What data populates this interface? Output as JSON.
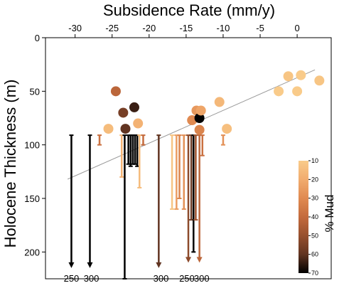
{
  "chart_data": {
    "type": "scatter",
    "title": "",
    "xlabel": "Subsidence Rate (mm/y)",
    "ylabel": "Holocene Thickness (m)",
    "x_axis_position": "top",
    "y_axis_inverted": true,
    "xlim": [
      -34,
      4.6
    ],
    "ylim": [
      0,
      225
    ],
    "x_ticks": [
      -30,
      -25,
      -20,
      -15,
      -10,
      -5,
      0
    ],
    "y_ticks": [
      0,
      50,
      100,
      150,
      200
    ],
    "colorbar": {
      "label": "% Mud",
      "range": [
        10,
        70
      ],
      "ticks": [
        10,
        20,
        30,
        40,
        50,
        60,
        70
      ],
      "position": "right",
      "colors": [
        "#f9cb8a",
        "#f1ac6e",
        "#e08a51",
        "#c46b3d",
        "#97502e",
        "#613421",
        "#000000"
      ]
    },
    "trend_line": {
      "x": [
        -31,
        2.4
      ],
      "y": [
        132,
        30
      ],
      "color": "#999999"
    },
    "points": [
      {
        "x": -25.5,
        "y": 85,
        "mud": 15
      },
      {
        "x": -24.5,
        "y": 50,
        "mud": 42
      },
      {
        "x": -23.5,
        "y": 70,
        "mud": 56
      },
      {
        "x": -23.2,
        "y": 85,
        "mud": 60
      },
      {
        "x": -22,
        "y": 65,
        "mud": 64
      },
      {
        "x": -21.5,
        "y": 80,
        "mud": 18
      },
      {
        "x": -14.2,
        "y": 77,
        "mud": 30
      },
      {
        "x": -13.6,
        "y": 68,
        "mud": 26
      },
      {
        "x": -13.2,
        "y": 75,
        "mud": 70
      },
      {
        "x": -13.2,
        "y": 86,
        "mud": 32
      },
      {
        "x": -13,
        "y": 68,
        "mud": 22
      },
      {
        "x": -10.5,
        "y": 60,
        "mud": 16
      },
      {
        "x": -9.5,
        "y": 85,
        "mud": 14
      },
      {
        "x": -2.5,
        "y": 50,
        "mud": 10
      },
      {
        "x": -1.2,
        "y": 36,
        "mud": 12
      },
      {
        "x": 0,
        "y": 50,
        "mud": 10
      },
      {
        "x": 0.5,
        "y": 35,
        "mud": 10
      },
      {
        "x": 3,
        "y": 40,
        "mud": 12
      }
    ],
    "ranges": [
      {
        "x": -30.5,
        "from": 91,
        "to": 215,
        "mud": 70,
        "arrow": true
      },
      {
        "x": -28,
        "from": 91,
        "to": 215,
        "mud": 70,
        "arrow": true
      },
      {
        "x": -26.7,
        "from": 91,
        "to": 100,
        "mud": 38
      },
      {
        "x": -23.7,
        "from": 91,
        "to": 130,
        "mud": 18
      },
      {
        "x": -23.3,
        "from": 91,
        "to": 225,
        "mud": 70
      },
      {
        "x": -22.8,
        "from": 91,
        "to": 118,
        "mud": 70
      },
      {
        "x": -22.5,
        "from": 91,
        "to": 120,
        "mud": 70
      },
      {
        "x": -22.2,
        "from": 91,
        "to": 118,
        "mud": 70
      },
      {
        "x": -21.9,
        "from": 91,
        "to": 118,
        "mud": 70
      },
      {
        "x": -21.6,
        "from": 91,
        "to": 120,
        "mud": 70
      },
      {
        "x": -21.3,
        "from": 91,
        "to": 140,
        "mud": 15
      },
      {
        "x": -20.8,
        "from": 91,
        "to": 100,
        "mud": 40
      },
      {
        "x": -18.7,
        "from": 91,
        "to": 215,
        "mud": 60,
        "arrow": true
      },
      {
        "x": -16.9,
        "from": 91,
        "to": 160,
        "mud": 12
      },
      {
        "x": -16.3,
        "from": 91,
        "to": 160,
        "mud": 24
      },
      {
        "x": -15.9,
        "from": 91,
        "to": 150,
        "mud": 32
      },
      {
        "x": -15.3,
        "from": 91,
        "to": 160,
        "mud": 28
      },
      {
        "x": -14.7,
        "from": 91,
        "to": 210,
        "mud": 52,
        "arrow": true
      },
      {
        "x": -14.3,
        "from": 91,
        "to": 170,
        "mud": 58
      },
      {
        "x": -14,
        "from": 91,
        "to": 200,
        "mud": 70
      },
      {
        "x": -13.7,
        "from": 91,
        "to": 170,
        "mud": 48
      },
      {
        "x": -13.2,
        "from": 91,
        "to": 210,
        "mud": 42,
        "arrow": true
      },
      {
        "x": -12.8,
        "from": 91,
        "to": 110,
        "mud": 38
      },
      {
        "x": -10,
        "from": 91,
        "to": 100,
        "mud": 28
      }
    ],
    "arrow_labels": [
      {
        "text": "250",
        "x": -30.5
      },
      {
        "text": "300",
        "x": -27.8
      },
      {
        "text": "300",
        "x": -18.4
      },
      {
        "text": "250",
        "x": -14.9
      },
      {
        "text": "300",
        "x": -12.9
      }
    ]
  }
}
